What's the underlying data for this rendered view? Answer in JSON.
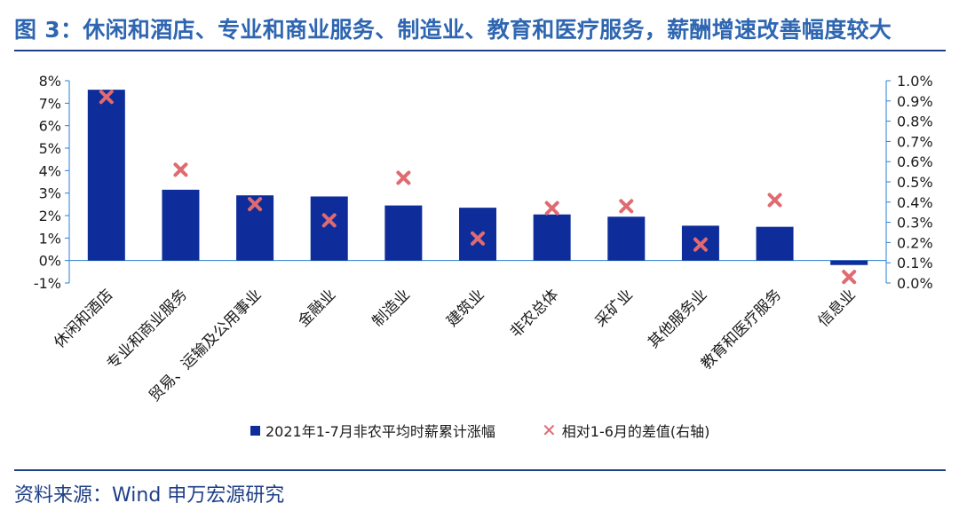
{
  "title": "图 3：休闲和酒店、专业和商业服务、制造业、教育和医疗服务，薪酬增速改善幅度较大",
  "source": "资料来源：Wind  申万宏源研究",
  "colors": {
    "title": "#2E66B1",
    "rule": "#1F3F86",
    "bar": "#0E2D9B",
    "marker": "#E06A70",
    "axis": "#2A7FD0",
    "text": "#1A1A1A"
  },
  "chart_data": {
    "type": "bar",
    "categories": [
      "休闲和酒店",
      "专业和商业服务",
      "贸易、运输及公用事业",
      "金融业",
      "制造业",
      "建筑业",
      "非农总体",
      "采矿业",
      "其他服务业",
      "教育和医疗服务",
      "信息业"
    ],
    "series": [
      {
        "name": "2021年1-7月非农平均时薪累计涨幅",
        "type": "bar",
        "axis": "left",
        "values": [
          7.6,
          3.15,
          2.9,
          2.85,
          2.45,
          2.35,
          2.05,
          1.95,
          1.55,
          1.5,
          -0.2
        ]
      },
      {
        "name": "相对1-6月的差值(右轴)",
        "type": "scatter",
        "marker": "x",
        "axis": "right",
        "values": [
          0.92,
          0.56,
          0.39,
          0.31,
          0.52,
          0.22,
          0.37,
          0.38,
          0.19,
          0.41,
          0.03
        ]
      }
    ],
    "y_left": {
      "ylim": [
        -1,
        8
      ],
      "ticks": [
        "-1%",
        "0%",
        "1%",
        "2%",
        "3%",
        "4%",
        "5%",
        "6%",
        "7%",
        "8%"
      ]
    },
    "y_right": {
      "ylim": [
        0,
        1.0
      ],
      "ticks": [
        "0.0%",
        "0.1%",
        "0.2%",
        "0.3%",
        "0.4%",
        "0.5%",
        "0.6%",
        "0.7%",
        "0.8%",
        "0.9%",
        "1.0%"
      ]
    },
    "xlabel": "",
    "ylabel": "",
    "grid": false,
    "legend": "bottom"
  }
}
